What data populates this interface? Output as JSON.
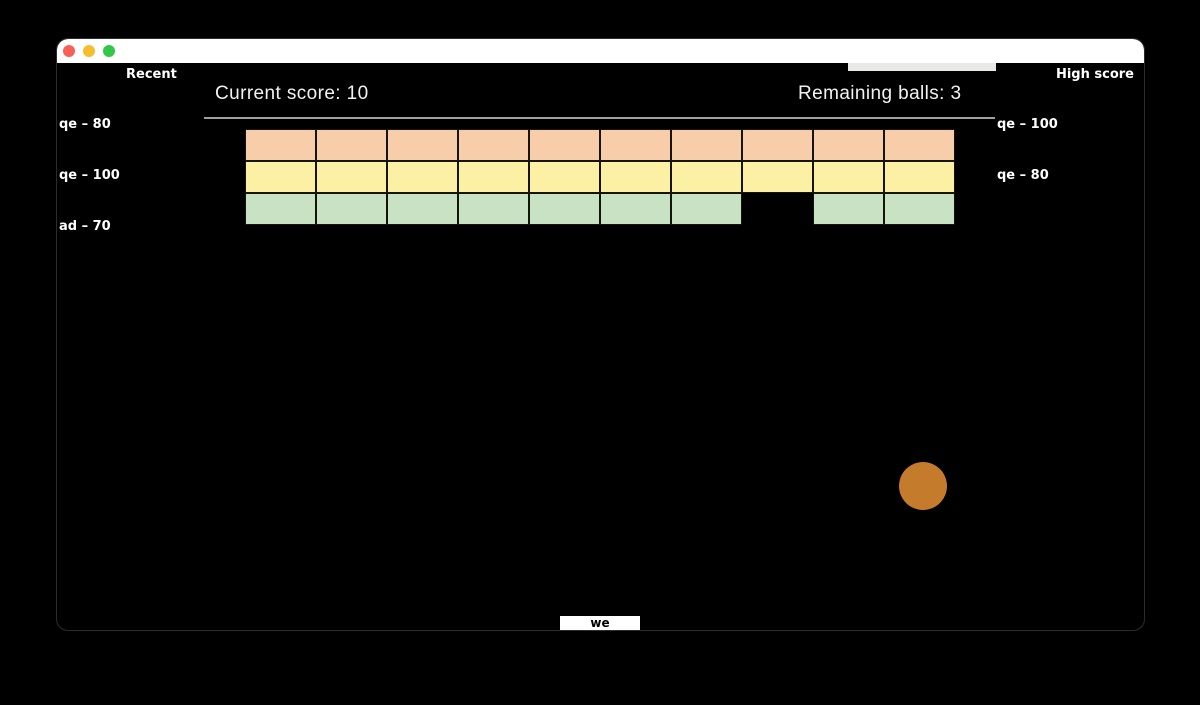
{
  "window": {
    "titlebar": {
      "close_color": "#f85f57",
      "minimize_color": "#f8bd2e",
      "maximize_color": "#33c748",
      "strip_color": "#e9e9e7"
    }
  },
  "recent_panel": {
    "title": "Recent",
    "items": [
      "qe – 80",
      "qe – 100",
      "ad – 70"
    ]
  },
  "highscore_panel": {
    "title": "High score",
    "items": [
      "qe – 100",
      "qe – 80"
    ]
  },
  "scoreboard": {
    "current_score_label": "Current score: 10",
    "current_score": 10,
    "remaining_balls_label": "Remaining balls: 3",
    "remaining_balls": 3,
    "divider_color": "#a0a0a0"
  },
  "game": {
    "bricks": {
      "rows": 3,
      "cols": 10,
      "row_colors": [
        "#f8cda9",
        "#fbf0a4",
        "#c7e3c4"
      ],
      "missing_cells": [
        [
          2,
          7
        ]
      ]
    },
    "ball": {
      "color": "#c47c2c"
    },
    "paddle": {
      "label": "we"
    }
  }
}
